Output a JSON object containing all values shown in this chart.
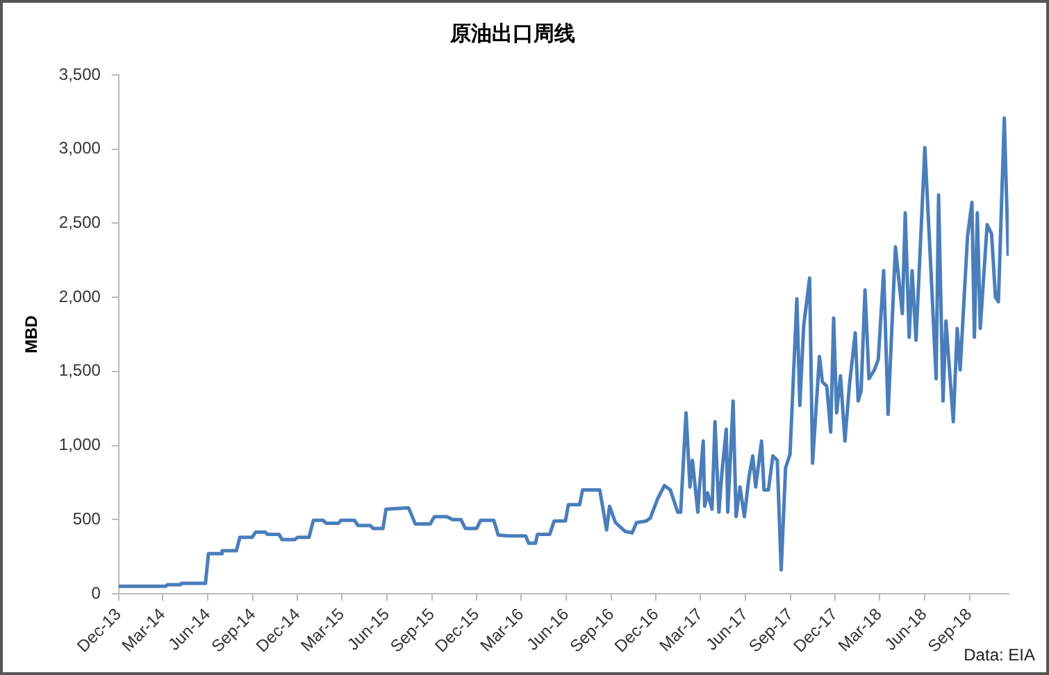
{
  "chart_data": {
    "type": "line",
    "title": "原油出口周线",
    "ylabel": "MBD",
    "annotations": [
      "Data: EIA"
    ],
    "x": [
      "2013-12-01",
      "2014-03-07",
      "2014-03-10",
      "2014-04-06",
      "2014-04-08",
      "2014-05-27",
      "2014-06-02",
      "2014-06-28",
      "2014-06-30",
      "2014-07-29",
      "2014-08-05",
      "2014-08-30",
      "2014-09-06",
      "2014-09-26",
      "2014-10-01",
      "2014-10-24",
      "2014-10-30",
      "2014-11-25",
      "2014-12-01",
      "2014-12-24",
      "2015-01-02",
      "2015-01-22",
      "2015-01-28",
      "2015-02-22",
      "2015-02-27",
      "2015-03-27",
      "2015-04-03",
      "2015-04-28",
      "2015-05-04",
      "2015-05-24",
      "2015-05-30",
      "2015-07-15",
      "2015-07-29",
      "2015-08-28",
      "2015-09-06",
      "2015-10-01",
      "2015-10-13",
      "2015-10-30",
      "2015-11-08",
      "2015-12-01",
      "2015-12-09",
      "2016-01-05",
      "2016-01-14",
      "2016-02-06",
      "2016-02-11",
      "2016-03-10",
      "2016-03-16",
      "2016-03-30",
      "2016-04-03",
      "2016-04-28",
      "2016-05-07",
      "2016-05-30",
      "2016-06-05",
      "2016-06-28",
      "2016-07-04",
      "2016-08-08",
      "2016-08-22",
      "2016-08-28",
      "2016-09-09",
      "2016-09-29",
      "2016-10-13",
      "2016-10-22",
      "2016-11-11",
      "2016-11-19",
      "2016-12-04",
      "2016-12-18",
      "2016-12-30",
      "2017-01-14",
      "2017-01-20",
      "2017-01-31",
      "2017-02-08",
      "2017-02-13",
      "2017-02-24",
      "2017-02-27",
      "2017-03-07",
      "2017-03-10",
      "2017-03-16",
      "2017-03-25",
      "2017-03-31",
      "2017-04-08",
      "2017-04-14",
      "2017-04-23",
      "2017-04-26",
      "2017-05-07",
      "2017-05-13",
      "2017-05-21",
      "2017-05-30",
      "2017-06-08",
      "2017-06-16",
      "2017-06-22",
      "2017-07-04",
      "2017-07-09",
      "2017-07-18",
      "2017-07-27",
      "2017-08-05",
      "2017-08-13",
      "2017-08-22",
      "2017-08-31",
      "2017-09-14",
      "2017-09-20",
      "2017-09-28",
      "2017-10-10",
      "2017-10-16",
      "2017-10-30",
      "2017-11-05",
      "2017-11-14",
      "2017-11-22",
      "2017-11-28",
      "2017-12-04",
      "2017-12-12",
      "2017-12-21",
      "2017-12-30",
      "2018-01-11",
      "2018-01-17",
      "2018-01-23",
      "2018-01-31",
      "2018-02-08",
      "2018-02-19",
      "2018-02-27",
      "2018-03-10",
      "2018-03-19",
      "2018-04-03",
      "2018-04-08",
      "2018-04-17",
      "2018-04-23",
      "2018-05-01",
      "2018-05-07",
      "2018-05-15",
      "2018-06-02",
      "2018-06-14",
      "2018-06-25",
      "2018-06-30",
      "2018-07-09",
      "2018-07-15",
      "2018-07-30",
      "2018-08-07",
      "2018-08-13",
      "2018-08-28",
      "2018-09-06",
      "2018-09-11",
      "2018-09-17",
      "2018-09-23",
      "2018-10-07",
      "2018-10-16",
      "2018-10-24",
      "2018-10-30",
      "2018-11-11",
      "2018-11-19"
    ],
    "series": [
      {
        "color": "#4a7ebb",
        "values": [
          50,
          50,
          60,
          60,
          70,
          70,
          270,
          270,
          290,
          290,
          380,
          380,
          415,
          415,
          400,
          400,
          365,
          365,
          380,
          380,
          495,
          495,
          475,
          475,
          495,
          495,
          460,
          460,
          440,
          440,
          570,
          580,
          470,
          470,
          520,
          520,
          500,
          500,
          440,
          440,
          495,
          495,
          395,
          390,
          390,
          390,
          340,
          340,
          400,
          400,
          490,
          490,
          600,
          600,
          700,
          700,
          430,
          590,
          480,
          420,
          410,
          480,
          490,
          510,
          640,
          730,
          700,
          550,
          550,
          1220,
          720,
          900,
          550,
          700,
          1030,
          590,
          680,
          570,
          1160,
          550,
          810,
          1110,
          550,
          1300,
          520,
          720,
          520,
          780,
          930,
          720,
          1030,
          700,
          700,
          930,
          900,
          160,
          850,
          940,
          1990,
          1270,
          1810,
          2130,
          880,
          1600,
          1430,
          1400,
          1090,
          1860,
          1220,
          1470,
          1030,
          1400,
          1760,
          1300,
          1370,
          2050,
          1450,
          1510,
          1580,
          2180,
          1210,
          2340,
          2180,
          1890,
          2570,
          1730,
          2180,
          1710,
          3010,
          2210,
          1450,
          2690,
          1300,
          1840,
          1160,
          1790,
          1510,
          2410,
          2640,
          1730,
          2570,
          1790,
          2490,
          2430,
          2000,
          1970,
          3210,
          2280
        ]
      }
    ],
    "xlim": [
      "2013-12-01",
      "2018-11-20"
    ],
    "xticks": [
      {
        "value": "2013-12-01",
        "label": "Dec-13"
      },
      {
        "value": "2014-03-01",
        "label": "Mar-14"
      },
      {
        "value": "2014-06-01",
        "label": "Jun-14"
      },
      {
        "value": "2014-09-01",
        "label": "Sep-14"
      },
      {
        "value": "2014-12-01",
        "label": "Dec-14"
      },
      {
        "value": "2015-03-01",
        "label": "Mar-15"
      },
      {
        "value": "2015-06-01",
        "label": "Jun-15"
      },
      {
        "value": "2015-09-01",
        "label": "Sep-15"
      },
      {
        "value": "2015-12-01",
        "label": "Dec-15"
      },
      {
        "value": "2016-03-01",
        "label": "Mar-16"
      },
      {
        "value": "2016-06-01",
        "label": "Jun-16"
      },
      {
        "value": "2016-09-01",
        "label": "Sep-16"
      },
      {
        "value": "2016-12-01",
        "label": "Dec-16"
      },
      {
        "value": "2017-03-01",
        "label": "Mar-17"
      },
      {
        "value": "2017-06-01",
        "label": "Jun-17"
      },
      {
        "value": "2017-09-01",
        "label": "Sep-17"
      },
      {
        "value": "2017-12-01",
        "label": "Dec-17"
      },
      {
        "value": "2018-03-01",
        "label": "Mar-18"
      },
      {
        "value": "2018-06-01",
        "label": "Jun-18"
      },
      {
        "value": "2018-09-01",
        "label": "Sep-18"
      }
    ],
    "ylim": [
      0,
      3500
    ],
    "yticks": [
      {
        "value": 0,
        "label": "0"
      },
      {
        "value": 500,
        "label": "500"
      },
      {
        "value": 1000,
        "label": "1,000"
      },
      {
        "value": 1500,
        "label": "1,500"
      },
      {
        "value": 2000,
        "label": "2,000"
      },
      {
        "value": 2500,
        "label": "2,500"
      },
      {
        "value": 3000,
        "label": "3,000"
      },
      {
        "value": 3500,
        "label": "3,500"
      }
    ],
    "grid": false,
    "legend": false,
    "marker": "none",
    "line_style": "solid"
  }
}
